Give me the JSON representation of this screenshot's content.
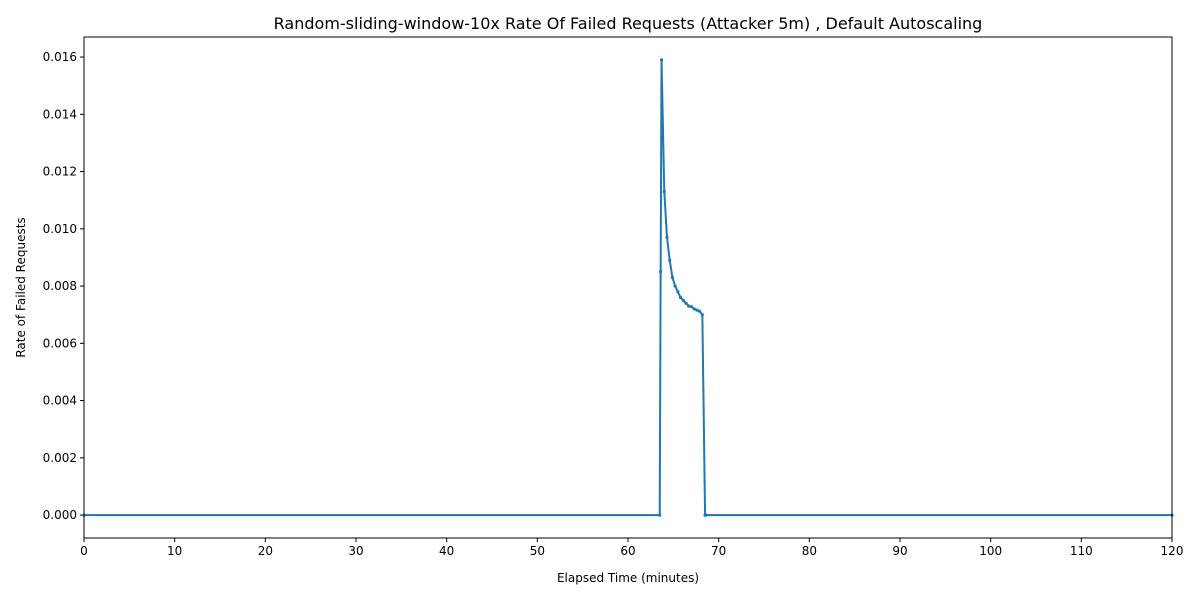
{
  "chart_data": {
    "type": "line",
    "title": "Random-sliding-window-10x Rate Of Failed Requests (Attacker 5m) , Default Autoscaling",
    "xlabel": "Elapsed Time (minutes)",
    "ylabel": "Rate of Failed Requests",
    "xlim": [
      0,
      120
    ],
    "ylim": [
      -0.0008,
      0.0167
    ],
    "xticks": [
      0,
      10,
      20,
      30,
      40,
      50,
      60,
      70,
      80,
      90,
      100,
      110,
      120
    ],
    "yticks": [
      0.0,
      0.002,
      0.004,
      0.006,
      0.008,
      0.01,
      0.012,
      0.014,
      0.016
    ],
    "ytick_labels": [
      "0.000",
      "0.002",
      "0.004",
      "0.006",
      "0.008",
      "0.010",
      "0.012",
      "0.014",
      "0.016"
    ],
    "grid": false,
    "legend": "none",
    "series_color": "#1f77b4",
    "series": [
      {
        "x": [
          0,
          63.5,
          63.6,
          63.7,
          64.0,
          64.3,
          64.6,
          64.9,
          65.2,
          65.5,
          65.8,
          66.1,
          66.4,
          66.7,
          67.0,
          67.3,
          67.6,
          67.9,
          68.2,
          68.5,
          68.6,
          120
        ],
        "y": [
          0,
          0,
          0.0085,
          0.0159,
          0.0113,
          0.0097,
          0.0089,
          0.0083,
          0.008,
          0.0078,
          0.0076,
          0.0075,
          0.0074,
          0.0073,
          0.00728,
          0.0072,
          0.00716,
          0.00712,
          0.007,
          0,
          0,
          0
        ]
      }
    ]
  }
}
